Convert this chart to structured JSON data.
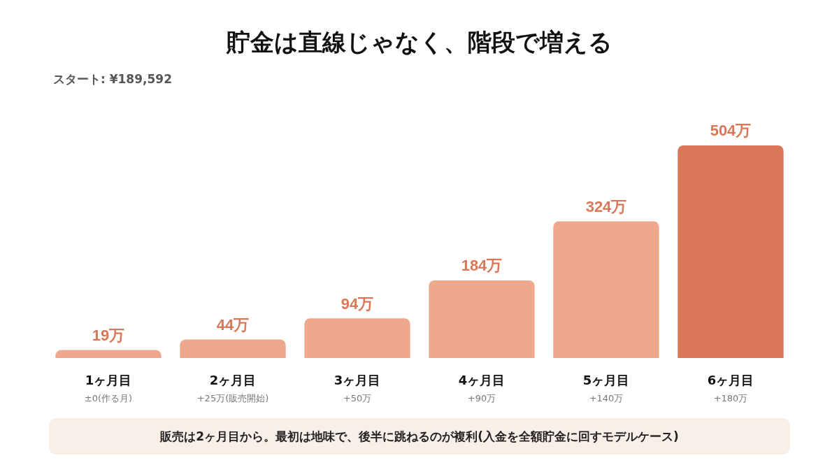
{
  "chart_data": {
    "type": "bar",
    "title": "貯金は直線じゃなく、階段で増える",
    "subtitle": "スタート: ¥189,592",
    "categories": [
      "1ヶ月目\n±0(作る月)",
      "2ヶ月目\n+25万(販売開始)",
      "3ヶ月目\n+50万",
      "4ヶ月目\n+90万",
      "5ヶ月目\n+140万",
      "6ヶ月目\n+180万"
    ],
    "values": [
      19,
      44,
      94,
      184,
      324,
      504
    ],
    "colors": [
      "#eea98c",
      "#eea98c",
      "#eea98c",
      "#eea98c",
      "#eea98c",
      "#d97757"
    ],
    "value_labels": [
      "19万",
      "44万",
      "94万",
      "184万",
      "324万",
      "504万"
    ],
    "annotations": [
      "販売は2ヶ月目から。最初は地味で、後半に跳ねるのが複利(入金を全額貯金に回すモデルケース)"
    ],
    "tick_labels": "x"
  }
}
